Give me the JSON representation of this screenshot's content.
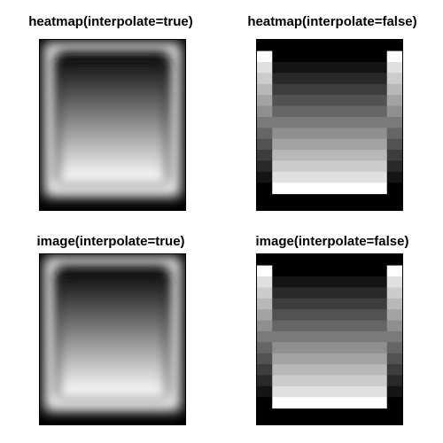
{
  "figure": {
    "background": "#ffffff"
  },
  "chart_data": [
    {
      "type": "heatmap",
      "title": "heatmap(interpolate=true)",
      "interpolate": true,
      "rows_top_to_bottom": [
        0,
        0.08,
        0.16,
        0.24,
        0.32,
        0.4,
        0.48,
        0.56,
        0.64,
        0.72,
        0.8,
        0.88,
        0.96,
        1
      ],
      "frame_color": "#000000",
      "palette": [
        "#000000",
        "#ffffff"
      ]
    },
    {
      "type": "heatmap",
      "title": "heatmap(interpolate=false)",
      "interpolate": false,
      "center_rows_top_to_bottom": [
        0.0,
        0.08,
        0.16,
        0.24,
        0.32,
        0.4,
        0.48,
        0.56,
        0.64,
        0.72,
        0.8,
        0.88,
        1.0
      ],
      "edge_rows_top_to_bottom": [
        1.0,
        0.88,
        0.8,
        0.72,
        0.64,
        0.56,
        0.48,
        0.4,
        0.32,
        0.24,
        0.16,
        0.08,
        0.0
      ],
      "frame_color": "#000000",
      "palette": [
        "#000000",
        "#ffffff"
      ]
    },
    {
      "type": "heatmap",
      "title": "image(interpolate=true)",
      "interpolate": true,
      "rows_top_to_bottom": [
        0,
        0.08,
        0.16,
        0.24,
        0.32,
        0.4,
        0.48,
        0.56,
        0.64,
        0.72,
        0.8,
        0.88,
        0.96,
        1
      ],
      "frame_color": "#000000",
      "palette": [
        "#000000",
        "#ffffff"
      ]
    },
    {
      "type": "heatmap",
      "title": "image(interpolate=false)",
      "interpolate": false,
      "center_rows_top_to_bottom": [
        0.0,
        0.08,
        0.16,
        0.24,
        0.32,
        0.4,
        0.48,
        0.56,
        0.64,
        0.72,
        0.8,
        0.88,
        1.0
      ],
      "edge_rows_top_to_bottom": [
        1.0,
        0.88,
        0.8,
        0.72,
        0.64,
        0.56,
        0.48,
        0.4,
        0.32,
        0.24,
        0.16,
        0.08,
        0.0
      ],
      "frame_color": "#000000",
      "palette": [
        "#000000",
        "#ffffff"
      ]
    }
  ]
}
